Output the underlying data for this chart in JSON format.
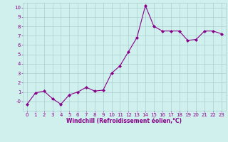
{
  "x": [
    0,
    1,
    2,
    3,
    4,
    5,
    6,
    7,
    8,
    9,
    10,
    11,
    12,
    13,
    14,
    15,
    16,
    17,
    18,
    19,
    20,
    21,
    22,
    23
  ],
  "y": [
    -0.3,
    0.9,
    1.1,
    0.3,
    -0.3,
    0.7,
    1.0,
    1.5,
    1.1,
    1.2,
    3.0,
    3.8,
    5.3,
    6.8,
    10.2,
    8.0,
    7.5,
    7.5,
    7.5,
    6.5,
    6.6,
    7.5,
    7.5,
    7.2
  ],
  "line_color": "#880088",
  "marker": "D",
  "marker_size": 2,
  "line_width": 0.8,
  "bg_color": "#d0f0ee",
  "grid_color": "#a0c8c8",
  "xlabel": "Windchill (Refroidissement éolien,°C)",
  "xlabel_color": "#880088",
  "xlabel_fontsize": 5.5,
  "tick_color": "#880088",
  "tick_fontsize": 5,
  "ylim": [
    -1,
    10.5
  ],
  "xlim": [
    -0.5,
    23.5
  ],
  "yticks": [
    0,
    1,
    2,
    3,
    4,
    5,
    6,
    7,
    8,
    9,
    10
  ],
  "ytick_labels": [
    "-0",
    "1",
    "2",
    "3",
    "4",
    "5",
    "6",
    "7",
    "8",
    "9",
    "10"
  ],
  "xticks": [
    0,
    1,
    2,
    3,
    4,
    5,
    6,
    7,
    8,
    9,
    10,
    11,
    12,
    13,
    14,
    15,
    16,
    17,
    18,
    19,
    20,
    21,
    22,
    23
  ]
}
